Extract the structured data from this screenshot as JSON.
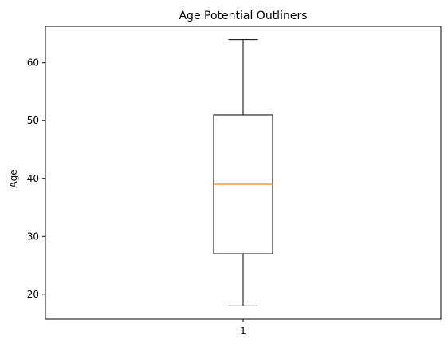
{
  "chart_data": {
    "type": "box",
    "title": "Age Potential Outliners",
    "xlabel": "",
    "ylabel": "Age",
    "ylim": [
      15.7,
      66.3
    ],
    "yticks": [
      20,
      30,
      40,
      50,
      60
    ],
    "xticks": [
      "1"
    ],
    "grid": false,
    "legend": "none",
    "boxes": [
      {
        "label": "1",
        "whisker_low": 18,
        "q1": 27,
        "median": 39,
        "q3": 51,
        "whisker_high": 64
      }
    ],
    "colors": {
      "box": "#000000",
      "median": "#ff7f0e",
      "axes": "#000000",
      "background": "#ffffff"
    }
  }
}
